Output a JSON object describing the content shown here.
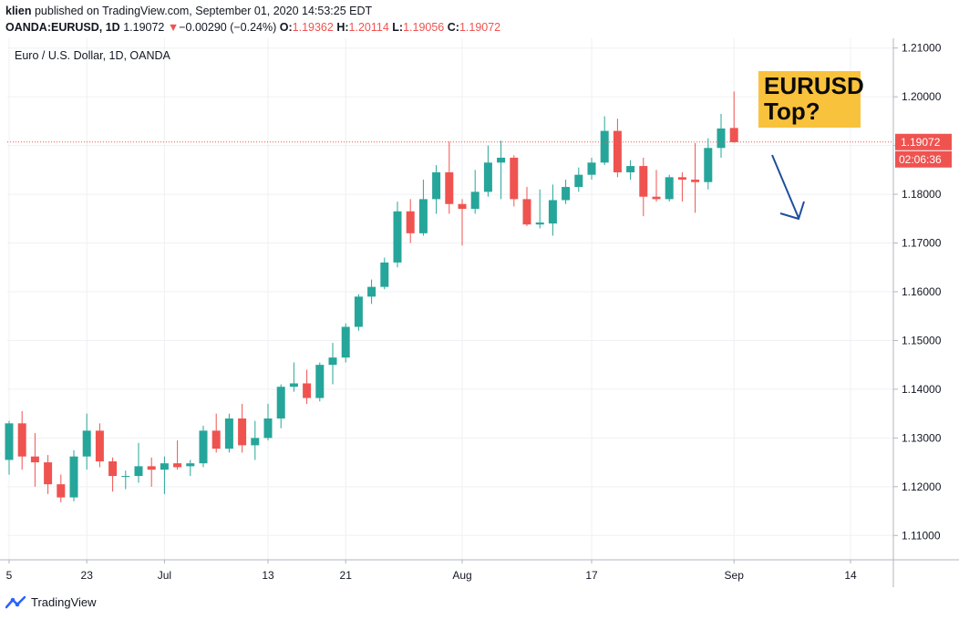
{
  "header": {
    "user": "klien",
    "published_text": "published on TradingView.com, September 01, 2020 14:53:25 EDT"
  },
  "quote": {
    "symbol": "OANDA:EURUSD, 1D",
    "last": "1.19072",
    "change_arrow": "▼",
    "change": "−0.00290 (−0.24%)",
    "open_label": "O:",
    "open": "1.19362",
    "high_label": "H:",
    "high": "1.20114",
    "low_label": "L:",
    "low": "1.19056",
    "close_label": "C:",
    "close": "1.19072"
  },
  "footer": {
    "brand": "TradingView"
  },
  "annotation": {
    "line1": "EURUSD",
    "line2": "Top?"
  },
  "colors": {
    "up": "#26a69a",
    "down": "#ef5350",
    "arrow": "#1e4f9c",
    "callout": "#f9c23c",
    "grid": "#eef0f3"
  },
  "chart_data": {
    "type": "candlestick",
    "subtitle": "Euro / U.S. Dollar, 1D, OANDA",
    "ylim": [
      1.105,
      1.212
    ],
    "y_ticks": [
      "1.21000",
      "1.20000",
      "1.19000",
      "1.18000",
      "1.17000",
      "1.16000",
      "1.15000",
      "1.14000",
      "1.13000",
      "1.12000",
      "1.11000"
    ],
    "x_ticks": [
      {
        "label": "5",
        "index": 0
      },
      {
        "label": "23",
        "index": 6
      },
      {
        "label": "Jul",
        "index": 12
      },
      {
        "label": "13",
        "index": 20
      },
      {
        "label": "21",
        "index": 26
      },
      {
        "label": "Aug",
        "index": 35
      },
      {
        "label": "17",
        "index": 45
      },
      {
        "label": "Sep",
        "index": 56
      },
      {
        "label": "14",
        "index": 65
      }
    ],
    "last_price_label": "1.19072",
    "countdown_label": "02:06:36",
    "candles": [
      {
        "o": 1.1255,
        "h": 1.1335,
        "l": 1.1225,
        "c": 1.133
      },
      {
        "o": 1.133,
        "h": 1.1355,
        "l": 1.1235,
        "c": 1.1262
      },
      {
        "o": 1.1262,
        "h": 1.131,
        "l": 1.12,
        "c": 1.125
      },
      {
        "o": 1.125,
        "h": 1.1265,
        "l": 1.1185,
        "c": 1.1205
      },
      {
        "o": 1.1205,
        "h": 1.1225,
        "l": 1.1168,
        "c": 1.1178
      },
      {
        "o": 1.1178,
        "h": 1.1275,
        "l": 1.117,
        "c": 1.1262
      },
      {
        "o": 1.1262,
        "h": 1.135,
        "l": 1.1235,
        "c": 1.1315
      },
      {
        "o": 1.1315,
        "h": 1.133,
        "l": 1.124,
        "c": 1.1252
      },
      {
        "o": 1.1252,
        "h": 1.126,
        "l": 1.119,
        "c": 1.1222
      },
      {
        "o": 1.122,
        "h": 1.1233,
        "l": 1.1195,
        "c": 1.1222
      },
      {
        "o": 1.1222,
        "h": 1.129,
        "l": 1.1208,
        "c": 1.1242
      },
      {
        "o": 1.1242,
        "h": 1.126,
        "l": 1.12,
        "c": 1.1235
      },
      {
        "o": 1.1235,
        "h": 1.1262,
        "l": 1.1185,
        "c": 1.1248
      },
      {
        "o": 1.1248,
        "h": 1.1295,
        "l": 1.1235,
        "c": 1.124
      },
      {
        "o": 1.1242,
        "h": 1.1255,
        "l": 1.1222,
        "c": 1.1248
      },
      {
        "o": 1.1248,
        "h": 1.1325,
        "l": 1.124,
        "c": 1.1315
      },
      {
        "o": 1.1315,
        "h": 1.135,
        "l": 1.127,
        "c": 1.1278
      },
      {
        "o": 1.1278,
        "h": 1.135,
        "l": 1.127,
        "c": 1.134
      },
      {
        "o": 1.134,
        "h": 1.137,
        "l": 1.127,
        "c": 1.1285
      },
      {
        "o": 1.1285,
        "h": 1.1335,
        "l": 1.1255,
        "c": 1.13
      },
      {
        "o": 1.13,
        "h": 1.137,
        "l": 1.1295,
        "c": 1.134
      },
      {
        "o": 1.134,
        "h": 1.141,
        "l": 1.132,
        "c": 1.1405
      },
      {
        "o": 1.1405,
        "h": 1.1455,
        "l": 1.1395,
        "c": 1.1412
      },
      {
        "o": 1.1412,
        "h": 1.144,
        "l": 1.137,
        "c": 1.1382
      },
      {
        "o": 1.1382,
        "h": 1.1455,
        "l": 1.1375,
        "c": 1.145
      },
      {
        "o": 1.145,
        "h": 1.1495,
        "l": 1.141,
        "c": 1.1465
      },
      {
        "o": 1.1465,
        "h": 1.1535,
        "l": 1.1455,
        "c": 1.1528
      },
      {
        "o": 1.1528,
        "h": 1.1595,
        "l": 1.152,
        "c": 1.159
      },
      {
        "o": 1.159,
        "h": 1.1625,
        "l": 1.1575,
        "c": 1.161
      },
      {
        "o": 1.161,
        "h": 1.167,
        "l": 1.1605,
        "c": 1.166
      },
      {
        "o": 1.166,
        "h": 1.1785,
        "l": 1.165,
        "c": 1.1765
      },
      {
        "o": 1.1765,
        "h": 1.179,
        "l": 1.17,
        "c": 1.172
      },
      {
        "o": 1.172,
        "h": 1.183,
        "l": 1.1715,
        "c": 1.179
      },
      {
        "o": 1.179,
        "h": 1.186,
        "l": 1.176,
        "c": 1.1845
      },
      {
        "o": 1.1845,
        "h": 1.1908,
        "l": 1.176,
        "c": 1.178
      },
      {
        "o": 1.178,
        "h": 1.179,
        "l": 1.1695,
        "c": 1.177
      },
      {
        "o": 1.177,
        "h": 1.185,
        "l": 1.176,
        "c": 1.1805
      },
      {
        "o": 1.1805,
        "h": 1.19,
        "l": 1.1795,
        "c": 1.1865
      },
      {
        "o": 1.1865,
        "h": 1.191,
        "l": 1.179,
        "c": 1.1875
      },
      {
        "o": 1.1875,
        "h": 1.188,
        "l": 1.1775,
        "c": 1.179
      },
      {
        "o": 1.179,
        "h": 1.1815,
        "l": 1.1735,
        "c": 1.1738
      },
      {
        "o": 1.1738,
        "h": 1.181,
        "l": 1.173,
        "c": 1.1742
      },
      {
        "o": 1.174,
        "h": 1.182,
        "l": 1.1715,
        "c": 1.1788
      },
      {
        "o": 1.1788,
        "h": 1.183,
        "l": 1.178,
        "c": 1.1815
      },
      {
        "o": 1.1815,
        "h": 1.1855,
        "l": 1.1805,
        "c": 1.184
      },
      {
        "o": 1.184,
        "h": 1.1875,
        "l": 1.183,
        "c": 1.1865
      },
      {
        "o": 1.1865,
        "h": 1.196,
        "l": 1.186,
        "c": 1.193
      },
      {
        "o": 1.193,
        "h": 1.1955,
        "l": 1.1835,
        "c": 1.1845
      },
      {
        "o": 1.1845,
        "h": 1.187,
        "l": 1.183,
        "c": 1.1858
      },
      {
        "o": 1.1858,
        "h": 1.1875,
        "l": 1.1755,
        "c": 1.1795
      },
      {
        "o": 1.1795,
        "h": 1.185,
        "l": 1.1785,
        "c": 1.179
      },
      {
        "o": 1.179,
        "h": 1.184,
        "l": 1.1785,
        "c": 1.1835
      },
      {
        "o": 1.1835,
        "h": 1.1845,
        "l": 1.1785,
        "c": 1.183
      },
      {
        "o": 1.183,
        "h": 1.1905,
        "l": 1.1762,
        "c": 1.1825
      },
      {
        "o": 1.1825,
        "h": 1.1915,
        "l": 1.181,
        "c": 1.1895
      },
      {
        "o": 1.1895,
        "h": 1.1965,
        "l": 1.1875,
        "c": 1.1935
      },
      {
        "o": 1.1936,
        "h": 1.2011,
        "l": 1.1906,
        "c": 1.1907
      }
    ]
  }
}
